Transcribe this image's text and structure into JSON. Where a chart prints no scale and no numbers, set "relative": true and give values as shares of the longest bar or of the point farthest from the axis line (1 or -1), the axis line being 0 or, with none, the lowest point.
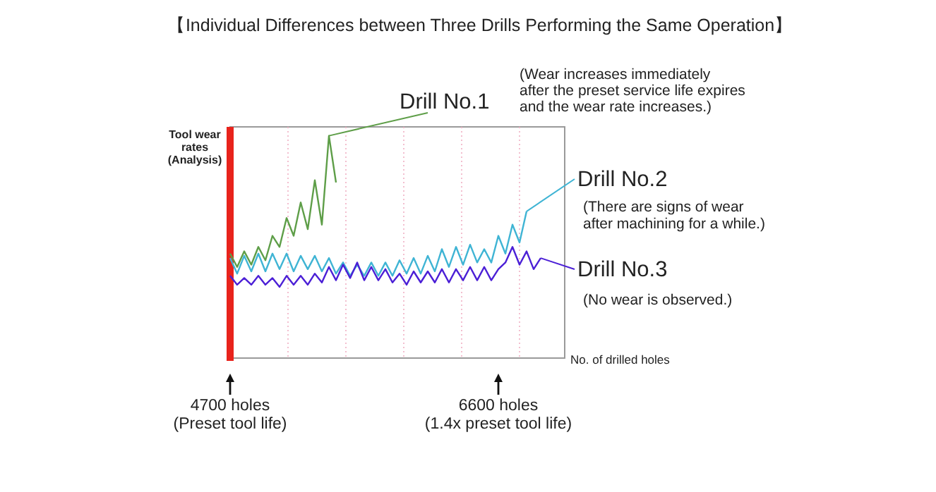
{
  "chart_data": {
    "type": "line",
    "title": "【Individual Differences between Three Drills Performing the Same Operation】",
    "xlabel": "No. of drilled holes",
    "ylabel": "Tool wear\nrates\n(Analysis)",
    "relative": true,
    "categories": [
      null,
      null,
      null,
      null,
      null,
      null,
      null,
      null,
      null,
      null,
      null,
      null,
      null,
      null,
      null,
      null,
      null,
      null,
      null,
      null,
      null,
      null,
      null,
      null,
      null,
      null,
      null,
      null,
      null,
      null,
      null,
      null,
      null,
      null,
      null,
      null,
      null,
      null,
      null,
      null,
      null,
      null,
      null,
      null,
      null,
      null,
      null,
      null
    ],
    "grid": "x",
    "legend": "right",
    "marker": "none",
    "line_style": "solid",
    "series": [
      {
        "name": "Drill No.1",
        "color": "#5e9e48",
        "values": [
          0.47,
          0.41,
          0.48,
          0.42,
          0.5,
          0.44,
          0.55,
          0.5,
          0.63,
          0.55,
          0.7,
          0.58,
          0.8,
          0.6,
          1,
          0.79,
          null,
          null,
          null,
          null,
          null,
          null,
          null,
          null,
          null,
          null,
          null,
          null,
          null,
          null,
          null,
          null,
          null,
          null,
          null,
          null,
          null,
          null,
          null,
          null,
          null,
          null,
          null,
          null,
          null,
          null,
          null,
          null
        ]
      },
      {
        "name": "Drill No.2",
        "color": "#3fb4d4",
        "values": [
          0.45,
          0.38,
          0.46,
          0.39,
          0.47,
          0.39,
          0.47,
          0.4,
          0.47,
          0.39,
          0.46,
          0.4,
          0.46,
          0.39,
          0.45,
          0.38,
          0.43,
          0.37,
          0.42,
          0.37,
          0.43,
          0.37,
          0.43,
          0.37,
          0.44,
          0.38,
          0.45,
          0.38,
          0.46,
          0.39,
          0.49,
          0.41,
          0.5,
          0.42,
          0.51,
          0.43,
          0.49,
          0.43,
          0.55,
          0.47,
          0.6,
          0.52,
          0.66,
          null,
          null,
          null,
          null,
          null
        ]
      },
      {
        "name": "Drill No.3",
        "color": "#4b1fd6",
        "values": [
          0.37,
          0.33,
          0.36,
          0.33,
          0.37,
          0.33,
          0.36,
          0.32,
          0.37,
          0.33,
          0.37,
          0.33,
          0.38,
          0.34,
          0.41,
          0.35,
          0.42,
          0.36,
          0.43,
          0.35,
          0.41,
          0.35,
          0.4,
          0.34,
          0.38,
          0.33,
          0.39,
          0.34,
          0.39,
          0.34,
          0.4,
          0.34,
          0.4,
          0.35,
          0.41,
          0.35,
          0.41,
          0.35,
          0.4,
          0.43,
          0.5,
          0.42,
          0.48,
          0.4,
          0.45,
          null,
          null,
          null
        ]
      }
    ],
    "annotations": [
      "(Wear increases immediately\nafter the preset service life expires\nand the wear rate increases.)",
      "(There are signs of wear\nafter machining for a while.)",
      "(No wear is observed.)",
      "4700 holes\n(Preset tool life)",
      "6600 holes\n(1.4x preset tool life)"
    ]
  }
}
